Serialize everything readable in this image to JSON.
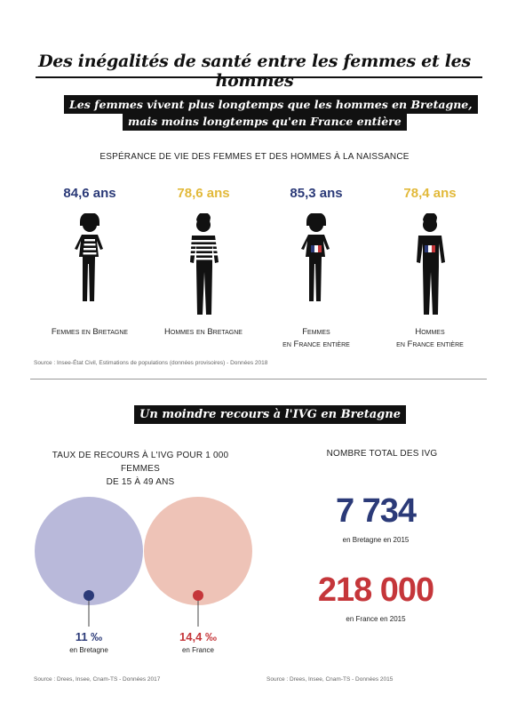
{
  "title": "Des inégalités de santé entre les femmes et les hommes",
  "section1": {
    "banner_line1": "Les femmes vivent plus longtemps que les hommes en Bretagne,",
    "banner_line2": "mais moins longtemps qu'en France entière",
    "subtitle": "ESPÉRANCE DE VIE DES FEMMES ET DES HOMMES À LA NAISSANCE",
    "figures": [
      {
        "value": "84,6 ans",
        "label_line1": "Femmes en Bretagne",
        "label_line2": "",
        "sex": "female",
        "flag": false,
        "color": "#2b3a78"
      },
      {
        "value": "78,6 ans",
        "label_line1": "Hommes en Bretagne",
        "label_line2": "",
        "sex": "male",
        "flag": false,
        "color": "#e2b93a"
      },
      {
        "value": "85,3 ans",
        "label_line1": "Femmes",
        "label_line2": "en France entière",
        "sex": "female",
        "flag": true,
        "color": "#2b3a78"
      },
      {
        "value": "78,4 ans",
        "label_line1": "Hommes",
        "label_line2": "en France entière",
        "sex": "male",
        "flag": true,
        "color": "#e2b93a"
      }
    ],
    "source": "Source : Insee-État Civil, Estimations de populations (données provisoires) - Données 2018"
  },
  "section2": {
    "banner": "Un moindre recours à l'IVG en Bretagne",
    "rate_subtitle_line1": "TAUX DE RECOURS À L'IVG POUR 1 000 FEMMES",
    "rate_subtitle_line2": "DE 15 À 49 ANS",
    "rates": [
      {
        "value": "11 ‰",
        "label": "en Bretagne",
        "circle_color": "#b9b9da",
        "dot_color": "#2b3a78"
      },
      {
        "value": "14,4 ‰",
        "label": "en France",
        "circle_color": "#eec3b7",
        "dot_color": "#c5363a"
      }
    ],
    "total_subtitle": "NOMBRE TOTAL DES IVG",
    "totals": [
      {
        "value": "7 734",
        "label": "en Bretagne en 2015",
        "color": "#2b3a78"
      },
      {
        "value": "218 000",
        "label": "en France en 2015",
        "color": "#c5363a"
      }
    ],
    "source_left": "Source : Drees, Insee, Cnam-TS - Données 2017",
    "source_right": "Source : Drees, Insee, Cnam-TS - Données 2015"
  }
}
